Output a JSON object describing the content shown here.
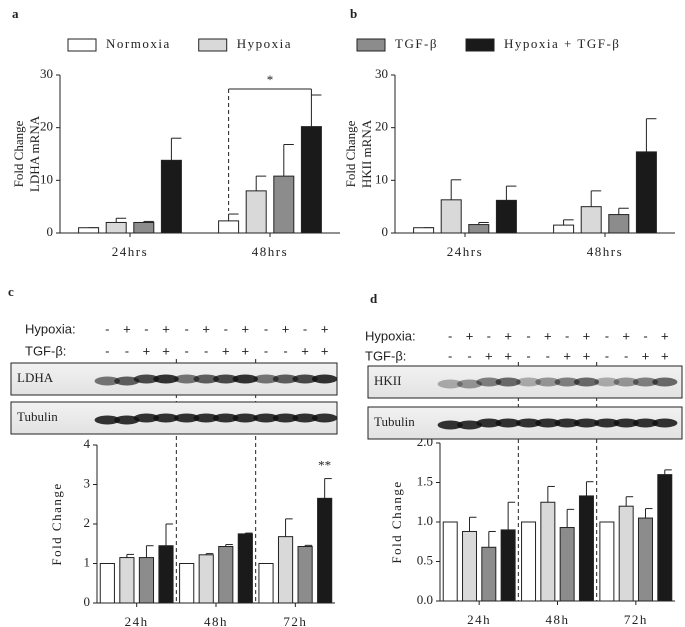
{
  "chart_data": [
    {
      "type": "bar",
      "panel": "a",
      "ylabel": [
        "Fold Change",
        "LDHA mRNA"
      ],
      "categories": [
        "24hrs",
        "48hrs"
      ],
      "ylim": [
        0,
        30
      ],
      "yticks": [
        0,
        10,
        20,
        30
      ],
      "series": [
        {
          "name": "Normoxia",
          "color": "#ffffff",
          "values": [
            1,
            2.3
          ],
          "errors": [
            0,
            1.3
          ]
        },
        {
          "name": "Hypoxia",
          "color": "#d9d9d9",
          "values": [
            2,
            8
          ],
          "errors": [
            0.8,
            2.8
          ]
        },
        {
          "color": "#8c8c8c",
          "values": [
            2,
            10.8
          ],
          "errors": [
            0.2,
            6
          ]
        },
        {
          "color": "#1a1a1a",
          "values": [
            13.8,
            20.2
          ],
          "errors": [
            4.2,
            6
          ]
        }
      ],
      "annotations": [
        "*"
      ]
    },
    {
      "type": "bar",
      "panel": "b",
      "ylabel": [
        "Fold Change",
        "HKII mRNA"
      ],
      "categories": [
        "24hrs",
        "48hrs"
      ],
      "ylim": [
        0,
        30
      ],
      "yticks": [
        0,
        10,
        20,
        30
      ],
      "series": [
        {
          "color": "#ffffff",
          "values": [
            1,
            1.5
          ],
          "errors": [
            0,
            1
          ]
        },
        {
          "color": "#d9d9d9",
          "values": [
            6.3,
            5
          ],
          "errors": [
            3.8,
            3
          ]
        },
        {
          "name": "TGF-β",
          "color": "#8c8c8c",
          "values": [
            1.6,
            3.5
          ],
          "errors": [
            0.4,
            1.2
          ]
        },
        {
          "name": "Hypoxia + TGF-β",
          "color": "#1a1a1a",
          "values": [
            6.2,
            15.4
          ],
          "errors": [
            2.7,
            6.3
          ]
        }
      ]
    },
    {
      "type": "bar",
      "panel": "c",
      "ylabel": [
        "Fold Change"
      ],
      "categories": [
        "24h",
        "48h",
        "72h"
      ],
      "ylim": [
        0,
        4
      ],
      "yticks": [
        0,
        1,
        2,
        3,
        4
      ],
      "blot": {
        "rows": [
          {
            "label": "Hypoxia:",
            "signs": [
              "-",
              "+",
              "-",
              "+",
              "-",
              "+",
              "-",
              "+",
              "-",
              "+",
              "-",
              "+"
            ]
          },
          {
            "label": "TGF-β:",
            "signs": [
              "-",
              "-",
              "+",
              "+",
              "-",
              "-",
              "+",
              "+",
              "-",
              "-",
              "+",
              "+"
            ]
          }
        ],
        "bands": [
          "LDHA",
          "Tubulin"
        ]
      },
      "series": [
        {
          "color": "#ffffff",
          "values": [
            1,
            1,
            1
          ],
          "errors": [
            0,
            0,
            0
          ]
        },
        {
          "color": "#d9d9d9",
          "values": [
            1.15,
            1.22,
            1.68
          ],
          "errors": [
            0.08,
            0.03,
            0.45
          ]
        },
        {
          "color": "#8c8c8c",
          "values": [
            1.15,
            1.43,
            1.43
          ],
          "errors": [
            0.3,
            0.05,
            0.03
          ]
        },
        {
          "color": "#1a1a1a",
          "values": [
            1.45,
            1.75,
            2.65
          ],
          "errors": [
            0.55,
            0.02,
            0.5
          ]
        }
      ],
      "annotations": [
        "**"
      ]
    },
    {
      "type": "bar",
      "panel": "d",
      "ylabel": [
        "Fold Change"
      ],
      "categories": [
        "24h",
        "48h",
        "72h"
      ],
      "ylim": [
        0,
        2
      ],
      "yticks": [
        {
          "value": 0,
          "label": "0.0"
        },
        {
          "value": 0.5,
          "label": "0.5"
        },
        {
          "value": 1,
          "label": "1.0"
        },
        {
          "value": 1.5,
          "label": "1.5"
        },
        {
          "value": 2,
          "label": "2.0"
        }
      ],
      "blot": {
        "rows": [
          {
            "label": "Hypoxia:",
            "signs": [
              "-",
              "+",
              "-",
              "+",
              "-",
              "+",
              "-",
              "+",
              "-",
              "+",
              "-",
              "+"
            ]
          },
          {
            "label": "TGF-β:",
            "signs": [
              "-",
              "-",
              "+",
              "+",
              "-",
              "-",
              "+",
              "+",
              "-",
              "-",
              "+",
              "+"
            ]
          }
        ],
        "bands": [
          "HKII",
          "Tubulin"
        ]
      },
      "series": [
        {
          "color": "#ffffff",
          "values": [
            1,
            1,
            1
          ],
          "errors": [
            0,
            0,
            0
          ]
        },
        {
          "color": "#d9d9d9",
          "values": [
            0.88,
            1.25,
            1.2
          ],
          "errors": [
            0.18,
            0.2,
            0.12
          ]
        },
        {
          "color": "#8c8c8c",
          "values": [
            0.68,
            0.93,
            1.05
          ],
          "errors": [
            0.2,
            0.23,
            0.12
          ]
        },
        {
          "color": "#1a1a1a",
          "values": [
            0.9,
            1.33,
            1.6
          ],
          "errors": [
            0.35,
            0.18,
            0.06
          ]
        }
      ]
    }
  ]
}
